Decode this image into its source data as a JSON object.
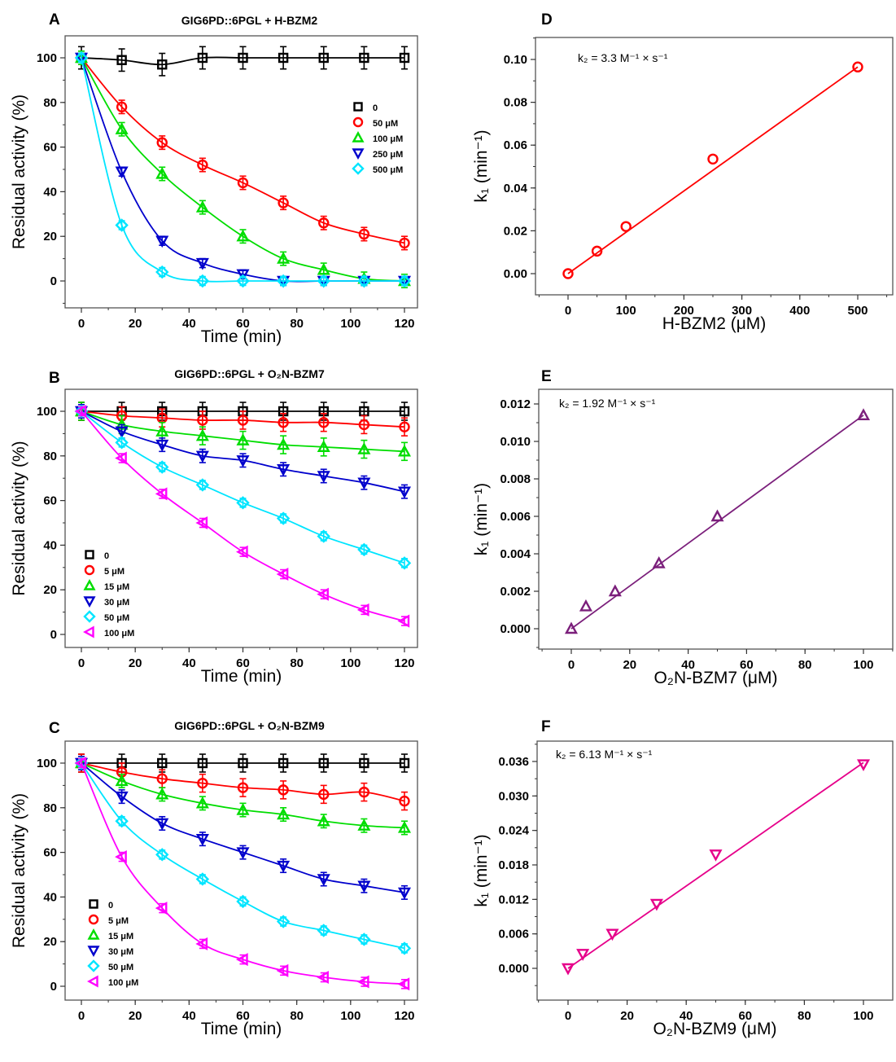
{
  "chart_data": [
    {
      "panel": "A",
      "type": "scatter",
      "title": "GIG6PD::6PGL + H-BZM2",
      "xlabel": "Time (min)",
      "ylabel": "Residual activity (%)",
      "xlim": [
        -5,
        125
      ],
      "ylim": [
        -5,
        110
      ],
      "xticks": [
        "0",
        "20",
        "40",
        "60",
        "80",
        "100",
        "120"
      ],
      "yticks": [
        "0",
        "20",
        "40",
        "60",
        "80",
        "100"
      ],
      "legend_position": "right",
      "x": [
        0,
        15,
        30,
        45,
        60,
        75,
        90,
        105,
        120
      ],
      "series": [
        {
          "name": "0",
          "color": "#000000",
          "marker": "square",
          "values": [
            100,
            99,
            97,
            100,
            100,
            100,
            100,
            100,
            100
          ],
          "err": 5
        },
        {
          "name": "50 μM",
          "color": "#ff0000",
          "marker": "circle",
          "values": [
            100,
            78,
            62,
            52,
            44,
            35,
            26,
            21,
            17
          ],
          "err": 3
        },
        {
          "name": "100 μM",
          "color": "#00dd00",
          "marker": "triangle-up",
          "values": [
            100,
            68,
            48,
            33,
            20,
            10,
            5,
            1,
            0
          ],
          "err": 3
        },
        {
          "name": "250 μM",
          "color": "#0000cc",
          "marker": "triangle-down",
          "values": [
            100,
            49,
            18,
            8,
            3,
            0,
            0,
            0,
            0
          ],
          "err": 2
        },
        {
          "name": "500 μM",
          "color": "#00e5ff",
          "marker": "diamond",
          "values": [
            100,
            25,
            4,
            0,
            0,
            0,
            0,
            0,
            0
          ],
          "err": 2
        }
      ]
    },
    {
      "panel": "B",
      "type": "scatter",
      "title": "GIG6PD::6PGL + O₂N-BZM7",
      "xlabel": "Time (min)",
      "ylabel": "Residual activity (%)",
      "xlim": [
        -5,
        125
      ],
      "ylim": [
        -5,
        110
      ],
      "xticks": [
        "0",
        "20",
        "40",
        "60",
        "80",
        "100",
        "120"
      ],
      "yticks": [
        "0",
        "20",
        "40",
        "60",
        "80",
        "100"
      ],
      "legend_position": "bottom-left",
      "x": [
        0,
        15,
        30,
        45,
        60,
        75,
        90,
        105,
        120
      ],
      "series": [
        {
          "name": "0",
          "color": "#000000",
          "marker": "square",
          "values": [
            100,
            100,
            100,
            100,
            100,
            100,
            100,
            100,
            100
          ],
          "err": 4
        },
        {
          "name": "5 μM",
          "color": "#ff0000",
          "marker": "circle",
          "values": [
            100,
            98,
            97,
            96,
            96,
            95,
            95,
            94,
            93
          ],
          "err": 4
        },
        {
          "name": "15 μM",
          "color": "#00dd00",
          "marker": "triangle-up",
          "values": [
            100,
            94,
            91,
            89,
            87,
            85,
            84,
            83,
            82
          ],
          "err": 4
        },
        {
          "name": "30 μM",
          "color": "#0000cc",
          "marker": "triangle-down",
          "values": [
            100,
            91,
            85,
            80,
            78,
            74,
            71,
            68,
            64
          ],
          "err": 3
        },
        {
          "name": "50 μM",
          "color": "#00e5ff",
          "marker": "diamond",
          "values": [
            100,
            86,
            75,
            67,
            59,
            52,
            44,
            38,
            32
          ],
          "err": 2
        },
        {
          "name": "100 μM",
          "color": "#ff00ff",
          "marker": "triangle-left",
          "values": [
            100,
            79,
            63,
            50,
            37,
            27,
            18,
            11,
            6
          ],
          "err": 2
        }
      ]
    },
    {
      "panel": "C",
      "type": "scatter",
      "title": "GIG6PD::6PGL + O₂N-BZM9",
      "xlabel": "Time (min)",
      "ylabel": "Residual activity (%)",
      "xlim": [
        -5,
        125
      ],
      "ylim": [
        -5,
        110
      ],
      "xticks": [
        "0",
        "20",
        "40",
        "60",
        "80",
        "100",
        "120"
      ],
      "yticks": [
        "0",
        "20",
        "40",
        "60",
        "80",
        "100"
      ],
      "legend_position": "bottom-left",
      "x": [
        0,
        15,
        30,
        45,
        60,
        75,
        90,
        105,
        120
      ],
      "series": [
        {
          "name": "0",
          "color": "#000000",
          "marker": "square",
          "values": [
            100,
            100,
            100,
            100,
            100,
            100,
            100,
            100,
            100
          ],
          "err": 4
        },
        {
          "name": "5 μM",
          "color": "#ff0000",
          "marker": "circle",
          "values": [
            100,
            96,
            93,
            91,
            89,
            88,
            86,
            87,
            83
          ],
          "err": 4
        },
        {
          "name": "15 μM",
          "color": "#00dd00",
          "marker": "triangle-up",
          "values": [
            100,
            92,
            86,
            82,
            79,
            77,
            74,
            72,
            71
          ],
          "err": 3
        },
        {
          "name": "30 μM",
          "color": "#0000cc",
          "marker": "triangle-down",
          "values": [
            100,
            85,
            73,
            66,
            60,
            54,
            48,
            45,
            42
          ],
          "err": 3
        },
        {
          "name": "50 μM",
          "color": "#00e5ff",
          "marker": "diamond",
          "values": [
            100,
            74,
            59,
            48,
            38,
            29,
            25,
            21,
            17
          ],
          "err": 2
        },
        {
          "name": "100 μM",
          "color": "#ff00ff",
          "marker": "triangle-left",
          "values": [
            100,
            58,
            35,
            19,
            12,
            7,
            4,
            2,
            1
          ],
          "err": 2
        }
      ]
    },
    {
      "panel": "D",
      "type": "scatter",
      "xlabel": "H-BZM2 (μM)",
      "ylabel": "k₁ (min⁻¹)",
      "annotation": "k₂ = 3.3 M⁻¹ × s⁻¹",
      "xlim": [
        -50,
        550
      ],
      "ylim": [
        -0.01,
        0.11
      ],
      "xticks": [
        "0",
        "100",
        "200",
        "300",
        "400",
        "500"
      ],
      "yticks": [
        "0.00",
        "0.02",
        "0.04",
        "0.06",
        "0.08",
        "0.10"
      ],
      "series": [
        {
          "name": "k1",
          "color": "#ff0000",
          "marker": "circle",
          "x": [
            0,
            50,
            100,
            250,
            500
          ],
          "values": [
            0,
            0.0105,
            0.022,
            0.0535,
            0.0965
          ],
          "fit": [
            0,
            0.0965
          ]
        }
      ]
    },
    {
      "panel": "E",
      "type": "scatter",
      "xlabel": "O₂N-BZM7 (μM)",
      "ylabel": "k₁ (min⁻¹)",
      "annotation": "k₂ = 1.92 M⁻¹ × s⁻¹",
      "xlim": [
        -10,
        110
      ],
      "ylim": [
        -0.001,
        0.013
      ],
      "xticks": [
        "0",
        "20",
        "40",
        "60",
        "80",
        "100"
      ],
      "yticks": [
        "0.000",
        "0.002",
        "0.004",
        "0.006",
        "0.008",
        "0.010",
        "0.012"
      ],
      "series": [
        {
          "name": "k1",
          "color": "#7b1f7b",
          "marker": "triangle-up",
          "x": [
            0,
            5,
            15,
            30,
            50,
            100
          ],
          "values": [
            0,
            0.0012,
            0.002,
            0.0035,
            0.006,
            0.0114
          ],
          "fit": [
            0,
            0.0114
          ]
        }
      ]
    },
    {
      "panel": "F",
      "type": "scatter",
      "xlabel": "O₂N-BZM9 (μM)",
      "ylabel": "k₁ (min⁻¹)",
      "annotation": "k₂ = 6.13 M⁻¹ × s⁻¹",
      "xlim": [
        -10,
        110
      ],
      "ylim": [
        -0.004,
        0.039
      ],
      "xticks": [
        "0",
        "20",
        "40",
        "60",
        "80",
        "100"
      ],
      "yticks": [
        "0.000",
        "0.006",
        "0.012",
        "0.018",
        "0.024",
        "0.030",
        "0.036"
      ],
      "series": [
        {
          "name": "k1",
          "color": "#e6008a",
          "marker": "triangle-down",
          "x": [
            0,
            5,
            15,
            30,
            50,
            100
          ],
          "values": [
            0,
            0.0025,
            0.006,
            0.0112,
            0.0198,
            0.0355
          ],
          "fit": [
            0,
            0.0358
          ]
        }
      ]
    }
  ]
}
